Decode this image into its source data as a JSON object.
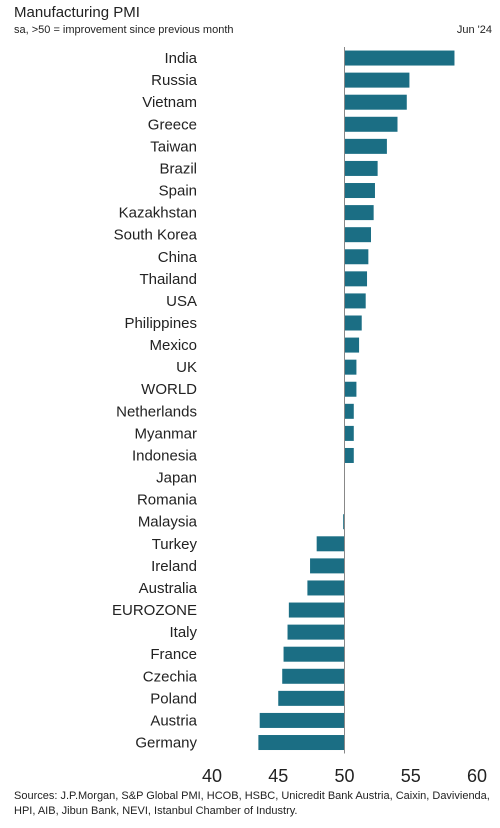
{
  "header": {
    "title": "Manufacturing PMI",
    "subtitle": "sa, >50 = improvement since previous month",
    "date": "Jun '24"
  },
  "footer": {
    "sources": "Sources: J.P.Morgan, S&P Global PMI, HCOB, HSBC, Unicredit Bank Austria, Caixin, Davivienda, HPI, AIB, Jibun Bank, NEVI, Istanbul Chamber of Industry."
  },
  "colors": {
    "bar": "#1b6e84",
    "axis": "#888888"
  },
  "chart_data": {
    "type": "bar",
    "orientation": "horizontal",
    "title": "Manufacturing PMI",
    "subtitle": "sa, >50 = improvement since previous month",
    "baseline": 50,
    "xlim": [
      40,
      60
    ],
    "xticks": [
      40,
      45,
      50,
      55,
      60
    ],
    "grid": false,
    "categories": [
      "India",
      "Russia",
      "Vietnam",
      "Greece",
      "Taiwan",
      "Brazil",
      "Spain",
      "Kazakhstan",
      "South Korea",
      "China",
      "Thailand",
      "USA",
      "Philippines",
      "Mexico",
      "UK",
      "WORLD",
      "Netherlands",
      "Myanmar",
      "Indonesia",
      "Japan",
      "Romania",
      "Malaysia",
      "Turkey",
      "Ireland",
      "Australia",
      "EUROZONE",
      "Italy",
      "France",
      "Czechia",
      "Poland",
      "Austria",
      "Germany"
    ],
    "values": [
      58.3,
      54.9,
      54.7,
      54.0,
      53.2,
      52.5,
      52.3,
      52.2,
      52.0,
      51.8,
      51.7,
      51.6,
      51.3,
      51.1,
      50.9,
      50.9,
      50.7,
      50.7,
      50.7,
      50.0,
      50.0,
      49.9,
      47.9,
      47.4,
      47.2,
      45.8,
      45.7,
      45.4,
      45.3,
      45.0,
      43.6,
      43.5
    ]
  }
}
